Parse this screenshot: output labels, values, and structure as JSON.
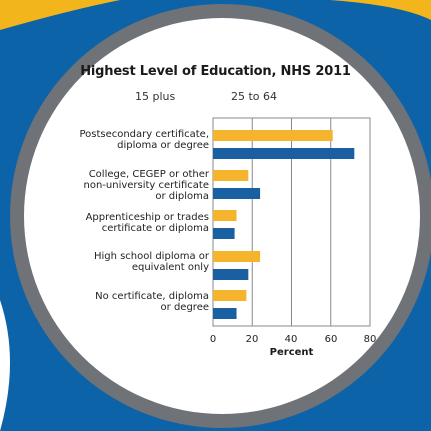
{
  "colors": {
    "series_15_plus": "#f6b42c",
    "series_25_to_64": "#1b5fa3",
    "background_blue": "#0d63a8",
    "ring": "#6f7378",
    "accent_yellow": "#f2b51c"
  },
  "chart_data": {
    "type": "bar",
    "orientation": "horizontal",
    "title": "Highest Level of Education, NHS 2011",
    "xlabel": "Percent",
    "ylabel": "",
    "xlim": [
      0,
      80
    ],
    "x_ticks": [
      "0",
      "20",
      "40",
      "60",
      "80"
    ],
    "grid": true,
    "legend_position": "top",
    "categories": [
      [
        "Postsecondary certificate,",
        "diploma or degree"
      ],
      [
        "College, CEGEP or other",
        "non-university certificate",
        "or diploma"
      ],
      [
        "Apprenticeship or trades",
        "certificate or diploma"
      ],
      [
        "High school diploma or",
        "equivalent only"
      ],
      [
        "No certificate, diploma",
        "or degree"
      ]
    ],
    "series": [
      {
        "name": "15 plus",
        "values": [
          61,
          18,
          12,
          24,
          17
        ]
      },
      {
        "name": "25 to 64",
        "values": [
          72,
          24,
          11,
          18,
          12
        ]
      }
    ]
  }
}
